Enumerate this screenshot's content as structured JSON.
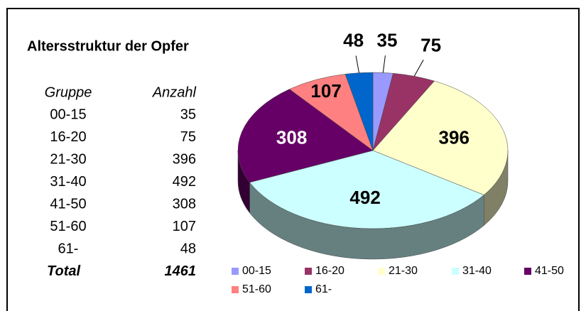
{
  "chart_data": {
    "type": "pie",
    "title": "Altersstruktur der Opfer",
    "categories": [
      "00-15",
      "16-20",
      "21-30",
      "31-40",
      "41-50",
      "51-60",
      "61-"
    ],
    "values": [
      35,
      75,
      396,
      492,
      308,
      107,
      48
    ],
    "colors": [
      "#9999ff",
      "#993366",
      "#ffffcc",
      "#ccffff",
      "#660066",
      "#ff8080",
      "#0066cc"
    ],
    "legend": "bottom"
  },
  "table": {
    "headers": [
      "Gruppe",
      "Anzahl"
    ],
    "rows": [
      [
        "00-15",
        35
      ],
      [
        "16-20",
        75
      ],
      [
        "21-30",
        396
      ],
      [
        "31-40",
        492
      ],
      [
        "41-50",
        308
      ],
      [
        "51-60",
        107
      ],
      [
        "61-",
        48
      ]
    ],
    "total": [
      "Total",
      1461
    ]
  }
}
